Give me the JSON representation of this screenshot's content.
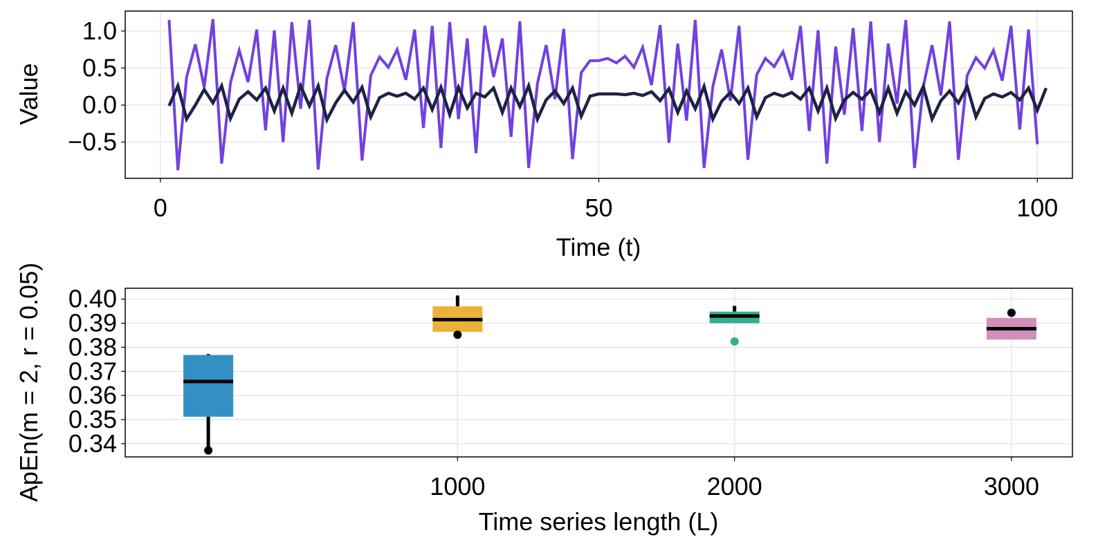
{
  "chart_data": [
    {
      "type": "line",
      "xlabel": "Time (t)",
      "ylabel": "Value",
      "xlim": [
        -4,
        104
      ],
      "ylim": [
        -0.99,
        1.27
      ],
      "xticks": [
        0,
        50,
        100
      ],
      "xtick_labels": [
        "0",
        "50",
        "100"
      ],
      "yticks": [
        -0.5,
        0.0,
        0.5,
        1.0
      ],
      "ytick_labels": [
        "−0.5",
        "0.0",
        "0.5",
        "1.0"
      ],
      "grid": true,
      "x_start": 1,
      "series": [
        {
          "color": "#7241df",
          "values": [
            1.15,
            -0.88,
            0.38,
            0.82,
            0.24,
            1.16,
            -0.79,
            0.3,
            0.74,
            0.31,
            1.02,
            -0.34,
            1.01,
            -0.5,
            1.12,
            -0.05,
            1.15,
            -0.87,
            0.36,
            0.81,
            0.19,
            1.12,
            -0.75,
            0.4,
            0.65,
            0.51,
            0.75,
            0.34,
            1.02,
            -0.31,
            1.07,
            -0.58,
            1.12,
            -0.19,
            0.9,
            -0.65,
            1.07,
            0.38,
            0.9,
            -0.43,
            1.13,
            -0.85,
            0.29,
            0.81,
            0.08,
            1.03,
            -0.73,
            0.44,
            0.6,
            0.6,
            0.63,
            0.57,
            0.66,
            0.51,
            0.78,
            0.27,
            1.08,
            -0.51,
            0.83,
            -0.21,
            1.15,
            -0.85,
            0.25,
            0.75,
            0.06,
            1.07,
            -0.74,
            0.41,
            0.63,
            0.52,
            0.72,
            0.34,
            1.07,
            -0.35,
            1.01,
            -0.79,
            0.79,
            -0.13,
            1.04,
            -0.35,
            1.13,
            -0.5,
            0.83,
            0.02,
            1.15,
            -0.85,
            0.25,
            0.81,
            0.13,
            1.13,
            -0.74,
            0.4,
            0.64,
            0.5,
            0.74,
            0.33,
            1.07,
            -0.33,
            1.02,
            -0.53
          ]
        },
        {
          "color": "#1c2343",
          "values": [
            -0.01,
            0.26,
            -0.19,
            0.0,
            0.21,
            0.03,
            0.26,
            -0.18,
            0.08,
            0.18,
            0.07,
            0.23,
            -0.08,
            0.23,
            -0.11,
            0.26,
            -0.01,
            0.26,
            -0.2,
            0.03,
            0.2,
            0.04,
            0.24,
            -0.16,
            0.1,
            0.16,
            0.12,
            0.16,
            0.08,
            0.23,
            -0.06,
            0.24,
            -0.13,
            0.24,
            -0.04,
            0.16,
            0.11,
            0.23,
            -0.1,
            0.23,
            -0.02,
            0.26,
            -0.19,
            0.07,
            0.19,
            0.02,
            0.23,
            -0.15,
            0.12,
            0.15,
            0.15,
            0.15,
            0.14,
            0.16,
            0.13,
            0.18,
            0.06,
            0.22,
            -0.1,
            0.19,
            -0.05,
            0.25,
            -0.19,
            0.05,
            0.17,
            0.02,
            0.23,
            -0.16,
            0.1,
            0.16,
            0.12,
            0.17,
            0.08,
            0.23,
            -0.08,
            0.23,
            -0.18,
            0.07,
            0.17,
            0.08,
            0.2,
            -0.1,
            0.23,
            -0.11,
            0.18,
            0.0,
            0.25,
            -0.19,
            0.06,
            0.19,
            0.03,
            0.25,
            -0.16,
            0.09,
            0.15,
            0.11,
            0.17,
            0.07,
            0.23,
            -0.07,
            0.23
          ]
        }
      ]
    },
    {
      "type": "box",
      "xlabel": "Time series length (L)",
      "ylabel": "ApEn(m = 2, r = 0.05)",
      "xlim": [
        -200,
        3220
      ],
      "ylim": [
        0.3345,
        0.4045
      ],
      "xticks": [
        1000,
        2000,
        3000
      ],
      "xtick_labels": [
        "1000",
        "2000",
        "3000"
      ],
      "yticks": [
        0.34,
        0.35,
        0.36,
        0.37,
        0.38,
        0.39,
        0.4
      ],
      "ytick_labels": [
        "0.34",
        "0.35",
        "0.36",
        "0.37",
        "0.38",
        "0.39",
        "0.40"
      ],
      "grid": true,
      "boxes": [
        {
          "x": 100,
          "q1": 0.3512,
          "median": 0.3658,
          "q3": 0.3768,
          "whisker_low": 0.3378,
          "whisker_high": 0.3772,
          "outliers": [
            0.3372
          ],
          "color": "#348fc4"
        },
        {
          "x": 1000,
          "q1": 0.3864,
          "median": 0.3915,
          "q3": 0.397,
          "whisker_low": 0.3848,
          "whisker_high": 0.4015,
          "outliers": [
            0.3852
          ],
          "color": "#ecb238"
        },
        {
          "x": 2000,
          "q1": 0.39,
          "median": 0.393,
          "q3": 0.3948,
          "whisker_low": 0.39,
          "whisker_high": 0.3972,
          "outliers": [
            0.3824
          ],
          "color": "#2fb08e",
          "outlier_color": "#2fb08e"
        },
        {
          "x": 3000,
          "q1": 0.3832,
          "median": 0.3877,
          "q3": 0.3922,
          "whisker_low": 0.3832,
          "whisker_high": 0.3922,
          "outliers": [
            0.3943
          ],
          "color": "#d18fba"
        }
      ]
    }
  ]
}
